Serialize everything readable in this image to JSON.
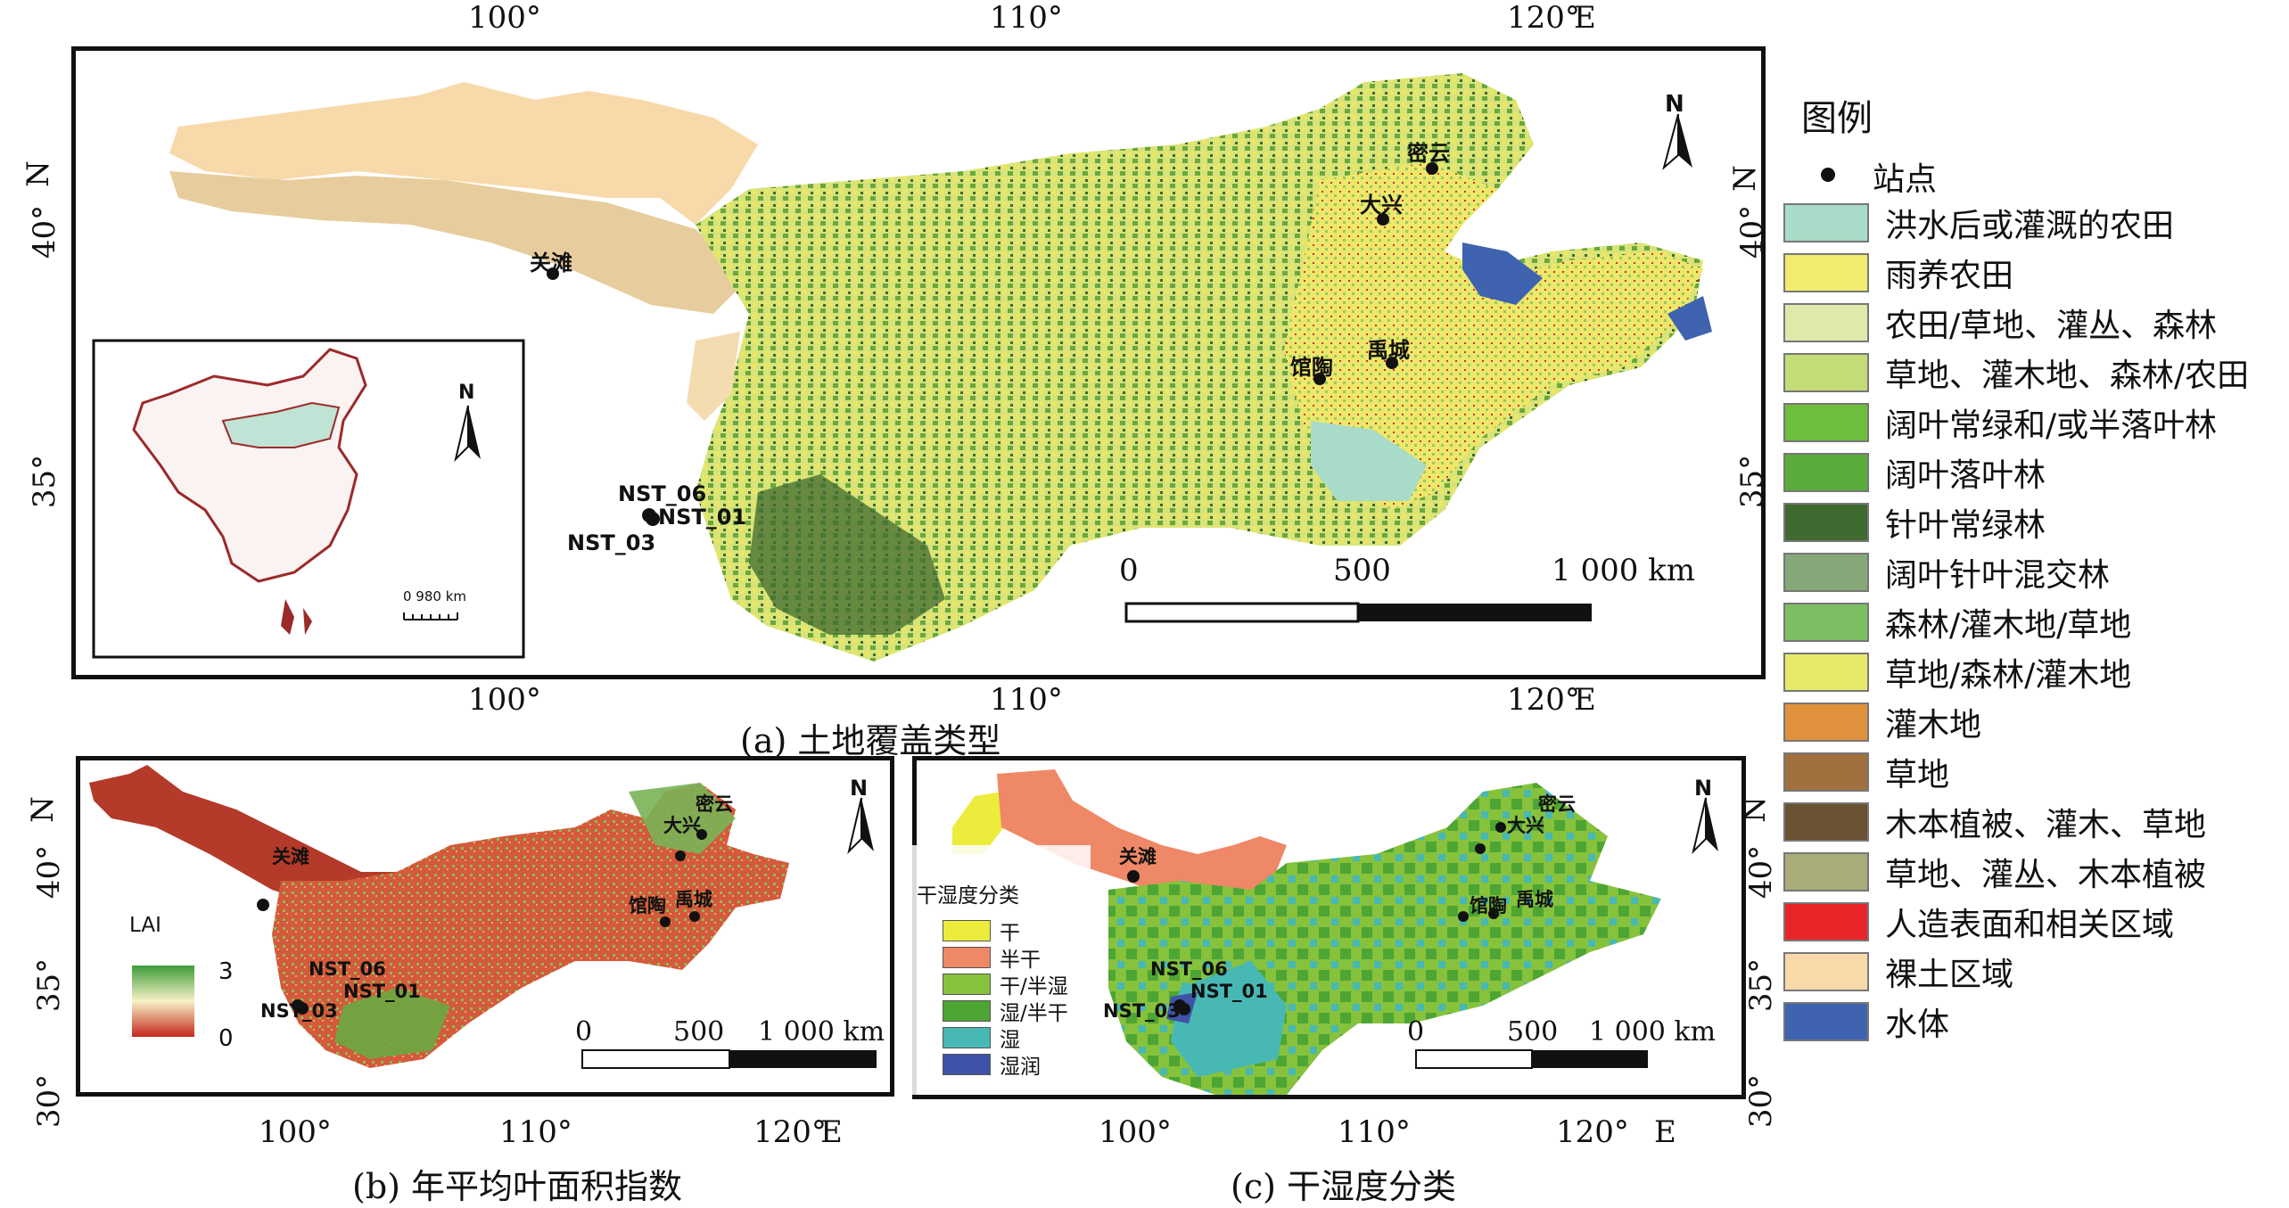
{
  "panel_a": {
    "caption": "(a) 土地覆盖类型",
    "top_ticks": [
      "100°",
      "110°",
      "120°",
      "E"
    ],
    "bottom_ticks": [
      "100°",
      "110°",
      "120°",
      "E"
    ],
    "left_ticks": [
      "40°",
      "35°",
      "N"
    ],
    "right_ticks": [
      "40°",
      "35°",
      "N"
    ],
    "north": "N",
    "scale_labels": [
      "0",
      "500",
      "1 000 km"
    ],
    "sites": [
      "密云",
      "大兴",
      "关滩",
      "馆陶",
      "禹城",
      "NST_06",
      "NST_01",
      "NST_03"
    ],
    "inset": {
      "north": "N",
      "scale": "0     980 km"
    }
  },
  "panel_b": {
    "caption": "(b) 年平均叶面积指数",
    "bottom_ticks": [
      "100°",
      "110°",
      "120°",
      "E"
    ],
    "left_ticks": [
      "40°",
      "35°",
      "30°",
      "N"
    ],
    "north": "N",
    "legend_title": "LAI",
    "legend_max": "3",
    "legend_min": "0",
    "scale_labels": [
      "0",
      "500",
      "1 000 km"
    ],
    "sites": [
      "密云",
      "大兴",
      "关滩",
      "馆陶",
      "禹城",
      "NST_06",
      "NST_01",
      "NST_03"
    ]
  },
  "panel_c": {
    "caption": "(c) 干湿度分类",
    "bottom_ticks": [
      "100°",
      "110°",
      "120°",
      "E"
    ],
    "right_ticks": [
      "40°",
      "35°",
      "30°",
      "N"
    ],
    "north": "N",
    "legend_title": "干湿度分类",
    "legend": [
      {
        "label": "干",
        "color": "#ecec3c"
      },
      {
        "label": "半干",
        "color": "#ee8866"
      },
      {
        "label": "干/半湿",
        "color": "#86c23c"
      },
      {
        "label": "湿/半干",
        "color": "#4da534"
      },
      {
        "label": "湿",
        "color": "#48b8b4"
      },
      {
        "label": "湿润",
        "color": "#3f52a8"
      }
    ],
    "scale_labels": [
      "0",
      "500",
      "1 000 km"
    ],
    "sites": [
      "密云",
      "大兴",
      "关滩",
      "馆陶",
      "禹城",
      "NST_06",
      "NST_01",
      "NST_03"
    ]
  },
  "main_legend": {
    "title": "图例",
    "site_label": "站点",
    "items": [
      {
        "label": "洪水后或灌溉的农田",
        "color": "#a9dcc8"
      },
      {
        "label": "雨养农田",
        "color": "#f1ec6e"
      },
      {
        "label": "农田/草地、灌丛、森林",
        "color": "#dfe9ac"
      },
      {
        "label": "草地、灌木地、森林/农田",
        "color": "#c3dc78"
      },
      {
        "label": "阔叶常绿和/或半落叶林",
        "color": "#6fbd3c"
      },
      {
        "label": "阔叶落叶林",
        "color": "#5aac3a"
      },
      {
        "label": "针叶常绿林",
        "color": "#3f6a30"
      },
      {
        "label": "阔叶针叶混交林",
        "color": "#86a878"
      },
      {
        "label": "森林/灌木地/草地",
        "color": "#7cbf63"
      },
      {
        "label": "草地/森林/灌木地",
        "color": "#e6ea6a"
      },
      {
        "label": "灌木地",
        "color": "#e0913c"
      },
      {
        "label": "草地",
        "color": "#a0703e"
      },
      {
        "label": "木本植被、灌木、草地",
        "color": "#6b5232"
      },
      {
        "label": "草地、灌丛、木本植被",
        "color": "#a9ab78"
      },
      {
        "label": "人造表面和相关区域",
        "color": "#e8262a"
      },
      {
        "label": "裸土区域",
        "color": "#f8d9aa"
      },
      {
        "label": "水体",
        "color": "#3f63ae"
      }
    ]
  }
}
